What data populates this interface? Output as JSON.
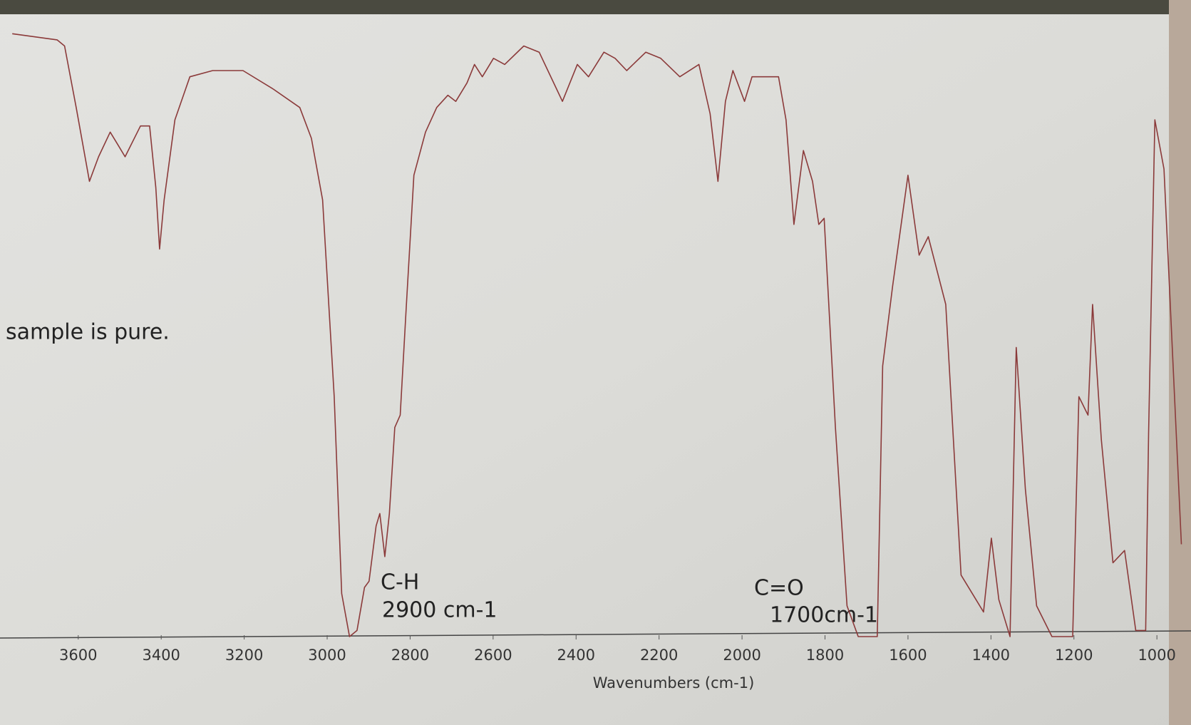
{
  "chart_data": {
    "type": "line",
    "x_label": "Wavenumbers (cm-1)",
    "annotations": [
      "sample is pure.",
      "C-H",
      "2900 cm-1",
      "C=O",
      "1700cm-1"
    ],
    "xlim": [
      3780,
      935
    ],
    "xticks": [
      3600,
      3400,
      3200,
      3000,
      2800,
      2600,
      2400,
      2200,
      2000,
      1800,
      1600,
      1400,
      1200,
      1000
    ],
    "ylim": [
      0,
      100
    ],
    "color": "#8b3a3a",
    "x": [
      3759,
      3651,
      3633,
      3605,
      3573,
      3551,
      3523,
      3505,
      3487,
      3450,
      3428,
      3413,
      3404,
      3393,
      3367,
      3331,
      3276,
      3203,
      3130,
      3066,
      3038,
      3011,
      2983,
      2965,
      2946,
      2928,
      2910,
      2899,
      2882,
      2873,
      2861,
      2850,
      2837,
      2824,
      2809,
      2791,
      2763,
      2736,
      2709,
      2690,
      2663,
      2645,
      2626,
      2599,
      2572,
      2526,
      2489,
      2433,
      2397,
      2370,
      2333,
      2306,
      2278,
      2232,
      2196,
      2150,
      2104,
      2077,
      2058,
      2040,
      2022,
      1994,
      1976,
      1948,
      1912,
      1894,
      1875,
      1852,
      1830,
      1815,
      1802,
      1775,
      1747,
      1720,
      1674,
      1661,
      1637,
      1600,
      1573,
      1551,
      1509,
      1472,
      1436,
      1418,
      1399,
      1381,
      1354,
      1339,
      1317,
      1290,
      1253,
      1203,
      1188,
      1166,
      1155,
      1134,
      1106,
      1078,
      1051,
      1027,
      1020,
      1005,
      983,
      941
    ],
    "values": [
      98,
      97,
      96,
      86,
      74,
      78,
      82,
      80,
      78,
      83,
      83,
      73,
      63,
      71,
      84,
      91,
      92,
      92,
      89,
      86,
      81,
      71,
      39,
      7,
      0,
      1,
      8,
      9,
      18,
      20,
      13,
      20,
      34,
      36,
      54,
      75,
      82,
      86,
      88,
      87,
      90,
      93,
      91,
      94,
      93,
      96,
      95,
      87,
      93,
      91,
      95,
      94,
      92,
      95,
      94,
      91,
      93,
      85,
      74,
      87,
      92,
      87,
      91,
      91,
      91,
      84,
      67,
      79,
      74,
      67,
      68,
      34,
      5,
      0,
      0,
      44,
      57,
      75,
      62,
      65,
      54,
      10,
      6,
      4,
      16,
      6,
      0,
      47,
      24,
      5,
      0,
      0,
      39,
      36,
      54,
      32,
      12,
      14,
      1,
      1,
      33,
      84,
      76,
      15
    ]
  }
}
